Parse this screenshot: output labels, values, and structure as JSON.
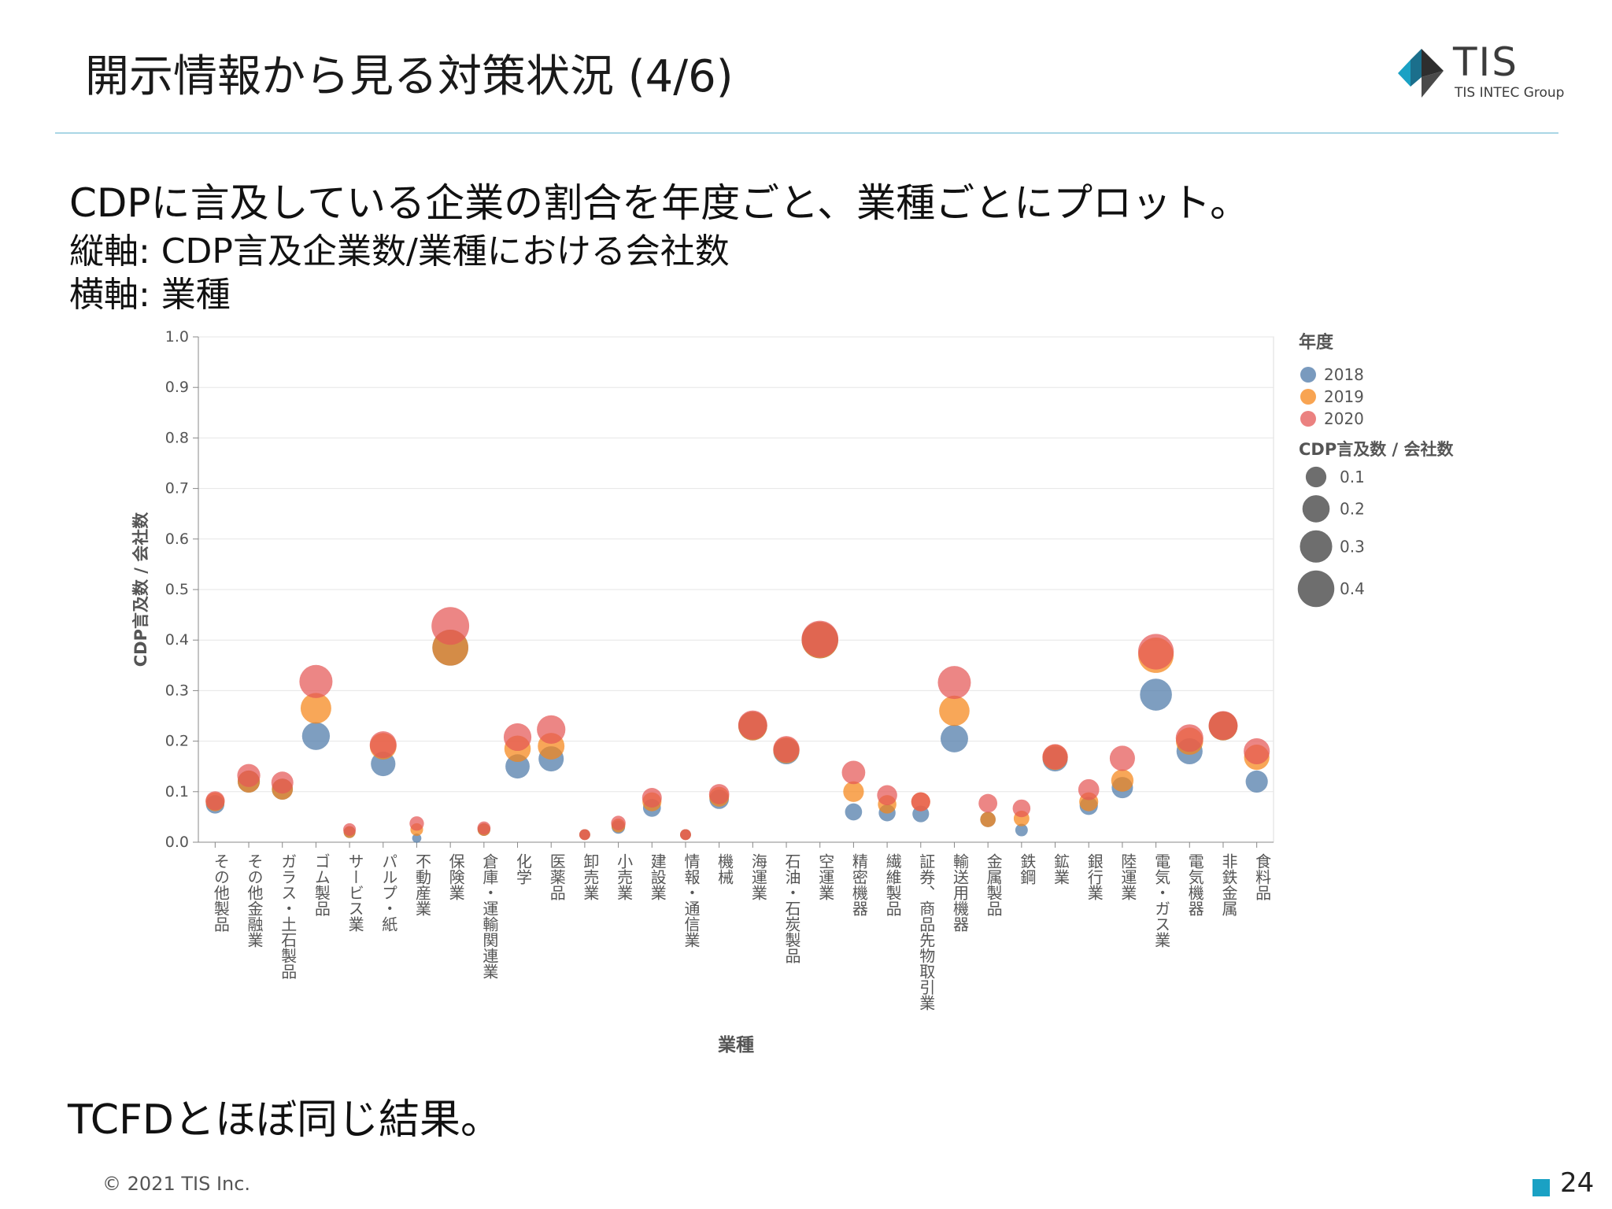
{
  "slide": {
    "title": "開示情報から見る対策状況 (4/6)",
    "logo_text": "TIS",
    "logo_subtext": "TIS INTEC Group",
    "description_line1": "CDPに言及している企業の割合を年度ごと、業種ごとにプロット。",
    "description_line2": "縦軸: CDP言及企業数/業種における会社数",
    "description_line3": "横軸: 業種",
    "conclusion": "TCFDとほぼ同じ結果。",
    "copyright": "© 2021 TIS Inc.",
    "page_number": "24"
  },
  "colors": {
    "title_rule": "#a9d6e5",
    "accent": "#1aa1c4",
    "y2018": "#4c78a8",
    "y2019": "#f58518",
    "y2020": "#e45756",
    "size_legend": "#6e6e6e"
  },
  "chart_data": {
    "type": "scatter",
    "xlabel": "業種",
    "ylabel": "CDP言及数 / 会社数",
    "ylim": [
      0,
      1.0
    ],
    "yticks": [
      "0.0",
      "0.1",
      "0.2",
      "0.3",
      "0.4",
      "0.5",
      "0.6",
      "0.7",
      "0.8",
      "0.9",
      "1.0"
    ],
    "grid": true,
    "legend_placement": "right",
    "color_legend_title": "年度",
    "size_legend_title": "CDP言及数 / 会社数",
    "size_legend_values": [
      "0.1",
      "0.2",
      "0.3",
      "0.4"
    ],
    "size_encodes": "y value",
    "categories": [
      "その他製品",
      "その他金融業",
      "ガラス・土石製品",
      "ゴム製品",
      "サービス業",
      "パルプ・紙",
      "不動産業",
      "保険業",
      "倉庫・運輸関連業",
      "化学",
      "医薬品",
      "卸売業",
      "小売業",
      "建設業",
      "情報・通信業",
      "機械",
      "海運業",
      "石油・石炭製品",
      "空運業",
      "精密機器",
      "繊維製品",
      "証券、商品先物取引業",
      "輸送用機器",
      "金属製品",
      "鉄鋼",
      "鉱業",
      "銀行業",
      "陸運業",
      "電気・ガス業",
      "電気機器",
      "非鉄金属",
      "食料品"
    ],
    "series": [
      {
        "name": "2018",
        "values": [
          0.075,
          0.12,
          0.105,
          0.21,
          0.02,
          0.155,
          0.008,
          0.385,
          0.025,
          0.15,
          0.165,
          0.015,
          0.03,
          0.068,
          0.015,
          0.085,
          0.23,
          0.18,
          0.4,
          0.06,
          0.058,
          0.056,
          0.205,
          0.045,
          0.024,
          0.165,
          0.072,
          0.108,
          0.292,
          0.18,
          0.23,
          0.12
        ]
      },
      {
        "name": "2019",
        "values": [
          0.08,
          0.12,
          0.105,
          0.265,
          0.02,
          0.19,
          0.025,
          0.385,
          0.025,
          0.185,
          0.19,
          0.015,
          0.033,
          0.08,
          0.015,
          0.09,
          0.23,
          0.182,
          0.4,
          0.1,
          0.075,
          0.08,
          0.26,
          0.045,
          0.047,
          0.168,
          0.08,
          0.122,
          0.37,
          0.2,
          0.23,
          0.168
        ]
      },
      {
        "name": "2020",
        "values": [
          0.082,
          0.132,
          0.118,
          0.318,
          0.025,
          0.193,
          0.037,
          0.428,
          0.028,
          0.208,
          0.223,
          0.015,
          0.038,
          0.088,
          0.015,
          0.095,
          0.232,
          0.184,
          0.402,
          0.138,
          0.093,
          0.08,
          0.316,
          0.077,
          0.067,
          0.169,
          0.104,
          0.166,
          0.377,
          0.206,
          0.231,
          0.18
        ]
      }
    ]
  }
}
